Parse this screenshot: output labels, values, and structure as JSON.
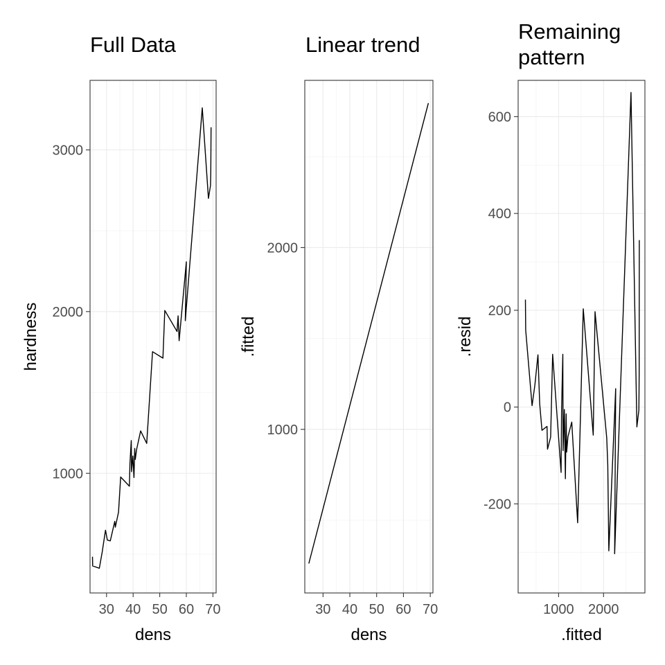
{
  "chart_data": [
    {
      "type": "line",
      "title": "Full Data",
      "xlabel": "dens",
      "ylabel": "hardness",
      "xlim": [
        23.8,
        71.2
      ],
      "ylim": [
        260,
        3430
      ],
      "x_ticks": [
        30,
        40,
        50,
        60,
        70
      ],
      "y_ticks": [
        1000,
        2000,
        3000
      ],
      "grid": true,
      "series": [
        {
          "x": [
            24.7,
            24.8,
            27.3,
            28.4,
            28.7,
            29.6,
            30.3,
            31.4,
            33.1,
            33.3,
            34.5,
            35.3,
            38.6,
            38.8,
            39.3,
            39.4,
            39.9,
            40.3,
            40.6,
            40.8,
            41.3,
            42.8,
            45.1,
            47.3,
            51.2,
            51.9,
            56.5,
            56.9,
            57.3,
            60.0,
            59.6,
            66.0,
            68.3,
            69.1,
            69.2,
            69.3
          ],
          "y": [
            484,
            427,
            413,
            517,
            549,
            648,
            587,
            582,
            703,
            667,
            760,
            977,
            920,
            1061,
            1203,
            1010,
            1107,
            974,
            1154,
            1086,
            1147,
            1262,
            1185,
            1752,
            1712,
            2007,
            1877,
            1974,
            1820,
            2308,
            1944,
            3260,
            2700,
            2780,
            2860,
            3140
          ]
        }
      ]
    },
    {
      "type": "line",
      "title": "Linear trend",
      "xlabel": "dens",
      "ylabel": ".fitted",
      "xlim": [
        23.2,
        71.0
      ],
      "ylim": [
        100,
        2920
      ],
      "x_ticks": [
        30,
        40,
        50,
        60,
        70
      ],
      "y_ticks": [
        1000,
        2000
      ],
      "grid": true,
      "series": [
        {
          "x": [
            24.7,
            69.3
          ],
          "y": [
            262,
            2795
          ]
        }
      ]
    },
    {
      "type": "line",
      "title": "Remaining\npattern",
      "xlabel": ".fitted",
      "ylabel": ".resid",
      "xlim": [
        100,
        2920
      ],
      "ylim": [
        -384,
        675
      ],
      "x_ticks": [
        1000,
        2000
      ],
      "y_ticks": [
        -200,
        0,
        200,
        400,
        600
      ],
      "grid": true,
      "series": [
        {
          "x": [
            262,
            268,
            410,
            472,
            489,
            540,
            580,
            630,
            743,
            754,
            822,
            868,
            1055,
            1066,
            1094,
            1100,
            1128,
            1151,
            1168,
            1179,
            1208,
            1293,
            1424,
            1549,
            1770,
            1810,
            2071,
            2094,
            2117,
            2270,
            2247,
            2610,
            2741,
            2786,
            2792,
            2795
          ],
          "y": [
            222,
            159,
            3,
            45,
            60,
            108,
            7,
            -48,
            -40,
            -87,
            -62,
            109,
            -135,
            -5,
            109,
            -90,
            -5,
            -148,
            -14,
            -93,
            -61,
            -31,
            -239,
            203,
            -58,
            197,
            -64,
            -120,
            -297,
            38,
            -303,
            650,
            -41,
            -6,
            68,
            345
          ]
        }
      ]
    }
  ]
}
